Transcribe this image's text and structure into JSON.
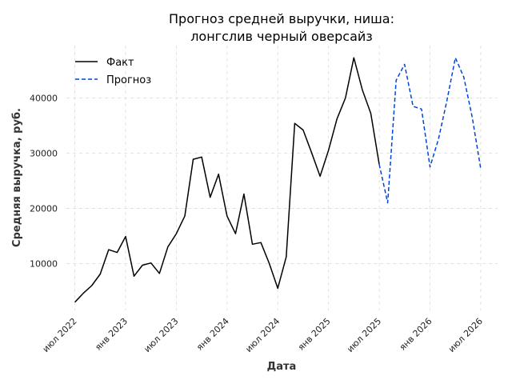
{
  "chart_data": {
    "type": "line",
    "title": [
      "Прогноз средней выручки, ниша:",
      "лонгслив черный оверсайз"
    ],
    "xlabel": "Дата",
    "ylabel": "Средняя выручка, руб.",
    "x_ticks": [
      {
        "label": "июл 2022",
        "date": "2022-07"
      },
      {
        "label": "янв 2023",
        "date": "2023-01"
      },
      {
        "label": "июл 2023",
        "date": "2023-07"
      },
      {
        "label": "янв 2024",
        "date": "2024-01"
      },
      {
        "label": "июл 2024",
        "date": "2024-07"
      },
      {
        "label": "янв 2025",
        "date": "2025-01"
      },
      {
        "label": "июл 2025",
        "date": "2025-07"
      },
      {
        "label": "янв 2026",
        "date": "2026-01"
      },
      {
        "label": "июл 2026",
        "date": "2026-07"
      }
    ],
    "y_ticks": [
      {
        "label": "10000",
        "value": 10000
      },
      {
        "label": "20000",
        "value": 20000
      },
      {
        "label": "30000",
        "value": 30000
      },
      {
        "label": "40000",
        "value": 40000
      }
    ],
    "xlim": [
      "2022-06",
      "2026-09"
    ],
    "ylim": [
      1500,
      49500
    ],
    "grid": true,
    "legend_position": "top-left",
    "series": [
      {
        "name": "Факт",
        "color": "#000000",
        "dash": "solid",
        "points": [
          {
            "date": "2022-07",
            "value": 3000
          },
          {
            "date": "2022-08",
            "value": 4600
          },
          {
            "date": "2022-09",
            "value": 6000
          },
          {
            "date": "2022-10",
            "value": 8100
          },
          {
            "date": "2022-11",
            "value": 12500
          },
          {
            "date": "2022-12",
            "value": 12000
          },
          {
            "date": "2023-01",
            "value": 14900
          },
          {
            "date": "2023-02",
            "value": 7700
          },
          {
            "date": "2023-03",
            "value": 9700
          },
          {
            "date": "2023-04",
            "value": 10100
          },
          {
            "date": "2023-05",
            "value": 8200
          },
          {
            "date": "2023-06",
            "value": 13000
          },
          {
            "date": "2023-07",
            "value": 15400
          },
          {
            "date": "2023-08",
            "value": 18600
          },
          {
            "date": "2023-09",
            "value": 28900
          },
          {
            "date": "2023-10",
            "value": 29300
          },
          {
            "date": "2023-11",
            "value": 22000
          },
          {
            "date": "2023-12",
            "value": 26200
          },
          {
            "date": "2024-01",
            "value": 18600
          },
          {
            "date": "2024-02",
            "value": 15400
          },
          {
            "date": "2024-03",
            "value": 22600
          },
          {
            "date": "2024-04",
            "value": 13500
          },
          {
            "date": "2024-05",
            "value": 13800
          },
          {
            "date": "2024-06",
            "value": 10000
          },
          {
            "date": "2024-07",
            "value": 5500
          },
          {
            "date": "2024-08",
            "value": 11200
          },
          {
            "date": "2024-09",
            "value": 35400
          },
          {
            "date": "2024-10",
            "value": 34200
          },
          {
            "date": "2024-11",
            "value": 30100
          },
          {
            "date": "2024-12",
            "value": 25800
          },
          {
            "date": "2025-01",
            "value": 30500
          },
          {
            "date": "2025-02",
            "value": 36200
          },
          {
            "date": "2025-03",
            "value": 40000
          },
          {
            "date": "2025-04",
            "value": 47300
          },
          {
            "date": "2025-05",
            "value": 41500
          },
          {
            "date": "2025-06",
            "value": 37200
          },
          {
            "date": "2025-07",
            "value": 28000
          }
        ]
      },
      {
        "name": "Прогноз",
        "color": "#0044dd",
        "dash": "dashed",
        "points": [
          {
            "date": "2025-07",
            "value": 28000
          },
          {
            "date": "2025-08",
            "value": 21000
          },
          {
            "date": "2025-09",
            "value": 43200
          },
          {
            "date": "2025-10",
            "value": 46100
          },
          {
            "date": "2025-11",
            "value": 38500
          },
          {
            "date": "2025-12",
            "value": 38000
          },
          {
            "date": "2026-01",
            "value": 27500
          },
          {
            "date": "2026-02",
            "value": 32500
          },
          {
            "date": "2026-03",
            "value": 39500
          },
          {
            "date": "2026-04",
            "value": 47300
          },
          {
            "date": "2026-05",
            "value": 43800
          },
          {
            "date": "2026-06",
            "value": 36500
          },
          {
            "date": "2026-07",
            "value": 27200
          }
        ]
      }
    ]
  }
}
